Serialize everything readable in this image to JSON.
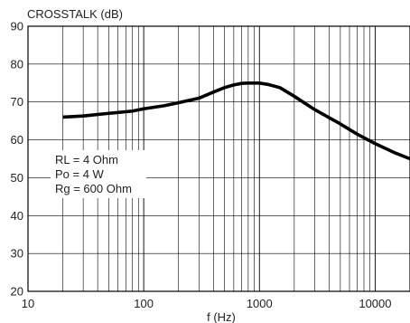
{
  "chart_data": {
    "type": "line",
    "title": "",
    "ylabel": "CROSSTALK (dB)",
    "xlabel": "f (Hz)",
    "x_scale": "log",
    "xlim": [
      10,
      20000
    ],
    "ylim": [
      20,
      90
    ],
    "grid": true,
    "x_ticks": [
      10,
      100,
      1000,
      10000
    ],
    "x_tick_labels": [
      "10",
      "100",
      "1000",
      "10000"
    ],
    "y_ticks": [
      20,
      30,
      40,
      50,
      60,
      70,
      80,
      90
    ],
    "y_tick_labels": [
      "20",
      "30",
      "40",
      "50",
      "60",
      "70",
      "80",
      "90"
    ],
    "annotations": [
      "RL = 4 Ohm",
      "Po = 4 W",
      "Rg = 600 Ohm"
    ],
    "series": [
      {
        "color": "#000000",
        "x": [
          20,
          30,
          50,
          80,
          100,
          150,
          200,
          300,
          400,
          500,
          600,
          700,
          800,
          1000,
          1200,
          1500,
          2000,
          3000,
          5000,
          7000,
          10000,
          15000,
          20000
        ],
        "y": [
          66,
          66.3,
          67,
          67.6,
          68.2,
          69,
          69.8,
          71,
          72.6,
          73.8,
          74.5,
          74.9,
          75,
          75,
          74.6,
          73.8,
          71.5,
          68,
          64.2,
          61.5,
          59,
          56.5,
          55
        ]
      }
    ]
  }
}
